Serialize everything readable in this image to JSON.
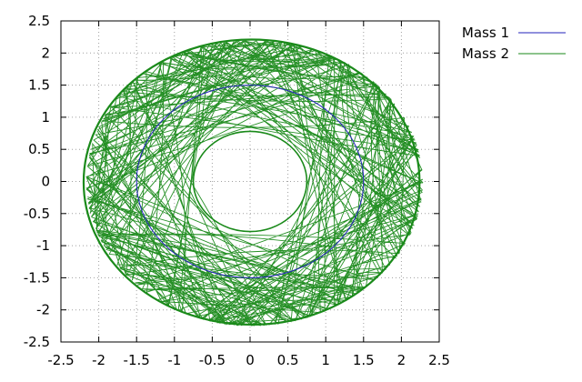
{
  "chart_data": {
    "type": "line",
    "title": "",
    "xlabel": "",
    "ylabel": "",
    "xlim": [
      -2.5,
      2.5
    ],
    "ylim": [
      -2.5,
      2.5
    ],
    "grid": true,
    "legend_position": "top-right (outside plot)",
    "xticks": [
      "-2.5",
      "-2",
      "-1.5",
      "-1",
      "-0.5",
      "0",
      "0.5",
      "1",
      "1.5",
      "2",
      "2.5"
    ],
    "yticks": [
      "2.5",
      "2",
      "1.5",
      "1",
      "0.5",
      "0",
      "-0.5",
      "-1",
      "-1.5",
      "-2",
      "-2.5"
    ],
    "series": [
      {
        "name": "Mass 1",
        "color": "#2222bb",
        "shape": "circle",
        "radius": 1.5,
        "center": [
          0,
          0
        ]
      },
      {
        "name": "Mass 2",
        "color": "#1a8a1a",
        "shape": "chaotic trajectory",
        "inner_boundary": {
          "rx": 0.75,
          "ry": 0.78
        },
        "outer_extent": {
          "x": [
            -2.2,
            2.25
          ],
          "y": [
            -2.25,
            2.25
          ]
        }
      }
    ]
  }
}
